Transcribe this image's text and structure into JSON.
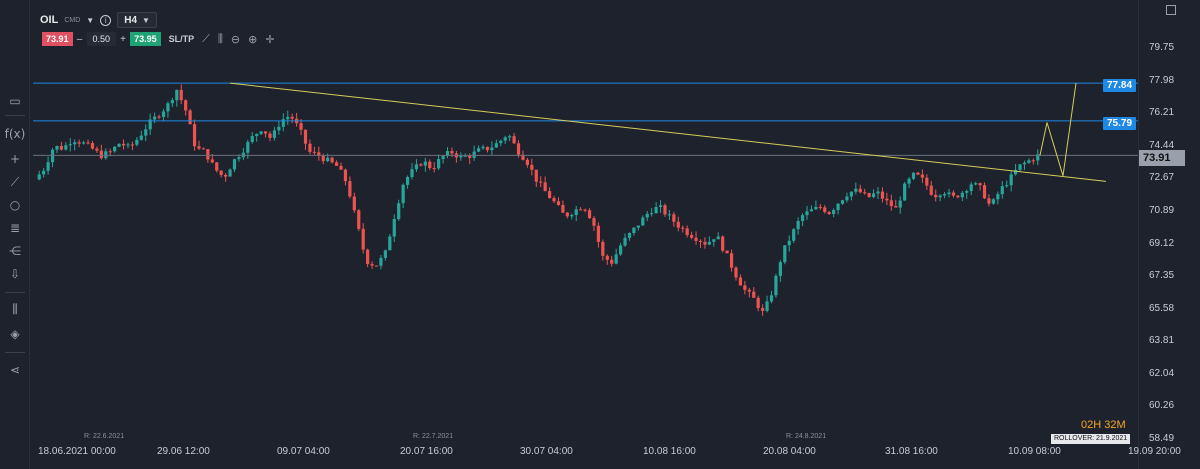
{
  "header": {
    "symbol": "OIL",
    "symbol_type": "CMD",
    "timeframe": "H4",
    "info_icon": "info-icon",
    "sell_price": "73.91",
    "quantity": "0.50",
    "buy_price": "73.95",
    "minus_label": "–",
    "plus_label": "+",
    "sltp_label": "SL/TP"
  },
  "toolbar_icons": [
    "chart-type-icon",
    "candles-icon",
    "zoom-out-icon",
    "zoom-in-icon",
    "crosshair-icon"
  ],
  "left_tools": [
    "panel-icon",
    "function-icon",
    "plus-icon",
    "line-tool-icon",
    "circle-tool-icon",
    "fibonacci-icon",
    "pitchfork-icon",
    "arrow-icon",
    "indicators-icon",
    "layers-icon",
    "share-icon"
  ],
  "price_labels": {
    "tag_high": "77.84",
    "tag_mid": "75.79",
    "current": "73.91",
    "countdown": "02H 32M",
    "rollover_badge": "ROLLOVER: 21.9.2021"
  },
  "rollover_marks": [
    "R: 22.6.2021",
    "R: 22.7.2021",
    "R: 24.8.2021"
  ],
  "chart_data": {
    "type": "candlestick",
    "instrument": "OIL",
    "timeframe": "H4",
    "y_ticks": [
      "79.75",
      "77.98",
      "76.21",
      "74.44",
      "72.67",
      "70.89",
      "69.12",
      "67.35",
      "65.58",
      "63.81",
      "62.04",
      "60.26",
      "58.49"
    ],
    "ylim": [
      58.49,
      79.75
    ],
    "x_ticks": [
      "18.06.2021 00:00",
      "29.06 12:00",
      "09.07 04:00",
      "20.07 16:00",
      "30.07 04:00",
      "10.08 16:00",
      "20.08 04:00",
      "31.08 16:00",
      "10.09 08:00",
      "19.09 20:00"
    ],
    "horizontal_levels": [
      77.84,
      75.79,
      73.91
    ],
    "trendline": {
      "from": [
        "30.06",
        77.84
      ],
      "to": [
        "19.09",
        72.5
      ]
    },
    "projection": [
      [
        73.91
      ],
      [
        75.7
      ],
      [
        72.8
      ],
      [
        77.84
      ]
    ],
    "approx_path": [
      [
        0,
        72.6
      ],
      [
        2,
        73.2
      ],
      [
        4,
        74.4
      ],
      [
        6,
        74.3
      ],
      [
        8,
        74.8
      ],
      [
        10,
        74.6
      ],
      [
        12,
        74.3
      ],
      [
        14,
        73.9
      ],
      [
        16,
        74.1
      ],
      [
        18,
        74.6
      ],
      [
        20,
        74.3
      ],
      [
        22,
        74.9
      ],
      [
        24,
        75.6
      ],
      [
        26,
        76.1
      ],
      [
        28,
        76.6
      ],
      [
        30,
        77.5
      ],
      [
        32,
        76.3
      ],
      [
        34,
        74.3
      ],
      [
        36,
        74.1
      ],
      [
        38,
        73.2
      ],
      [
        40,
        72.7
      ],
      [
        42,
        73.6
      ],
      [
        44,
        74.2
      ],
      [
        46,
        74.9
      ],
      [
        48,
        75.4
      ],
      [
        50,
        74.8
      ],
      [
        52,
        75.8
      ],
      [
        54,
        76.1
      ],
      [
        56,
        75.3
      ],
      [
        58,
        74.1
      ],
      [
        60,
        73.9
      ],
      [
        62,
        73.6
      ],
      [
        64,
        73.3
      ],
      [
        66,
        72.4
      ],
      [
        68,
        70.3
      ],
      [
        70,
        68.2
      ],
      [
        72,
        67.9
      ],
      [
        74,
        68.5
      ],
      [
        76,
        70.6
      ],
      [
        78,
        72.5
      ],
      [
        80,
        73.1
      ],
      [
        82,
        73.6
      ],
      [
        84,
        73.2
      ],
      [
        86,
        73.8
      ],
      [
        88,
        74.1
      ],
      [
        90,
        73.8
      ],
      [
        92,
        73.9
      ],
      [
        94,
        74.2
      ],
      [
        96,
        74.3
      ],
      [
        98,
        74.6
      ],
      [
        100,
        75.1
      ],
      [
        102,
        74.2
      ],
      [
        104,
        73.6
      ],
      [
        106,
        72.6
      ],
      [
        108,
        71.9
      ],
      [
        110,
        71.3
      ],
      [
        112,
        70.6
      ],
      [
        114,
        70.9
      ],
      [
        116,
        71.2
      ],
      [
        118,
        70.3
      ],
      [
        120,
        68.4
      ],
      [
        122,
        68.1
      ],
      [
        124,
        69.1
      ],
      [
        126,
        69.7
      ],
      [
        128,
        70.3
      ],
      [
        130,
        70.9
      ],
      [
        132,
        71.1
      ],
      [
        134,
        70.6
      ],
      [
        136,
        70.1
      ],
      [
        138,
        69.7
      ],
      [
        140,
        69.4
      ],
      [
        142,
        69.1
      ],
      [
        144,
        69.6
      ],
      [
        146,
        68.6
      ],
      [
        148,
        67.5
      ],
      [
        150,
        66.6
      ],
      [
        152,
        66.1
      ],
      [
        154,
        65.3
      ],
      [
        156,
        66.6
      ],
      [
        158,
        68.6
      ],
      [
        160,
        69.6
      ],
      [
        162,
        70.6
      ],
      [
        164,
        70.9
      ],
      [
        166,
        71.1
      ],
      [
        168,
        70.8
      ],
      [
        170,
        71.4
      ],
      [
        172,
        71.9
      ],
      [
        174,
        72.0
      ],
      [
        176,
        71.6
      ],
      [
        178,
        71.9
      ],
      [
        180,
        71.4
      ],
      [
        182,
        71.0
      ],
      [
        184,
        72.3
      ],
      [
        186,
        72.9
      ],
      [
        188,
        72.5
      ],
      [
        190,
        71.7
      ],
      [
        192,
        72.0
      ],
      [
        194,
        71.6
      ],
      [
        196,
        71.9
      ],
      [
        198,
        72.4
      ],
      [
        200,
        72.1
      ],
      [
        202,
        71.1
      ],
      [
        204,
        72.0
      ],
      [
        206,
        72.6
      ],
      [
        208,
        73.3
      ],
      [
        210,
        73.6
      ],
      [
        212,
        73.9
      ]
    ]
  }
}
